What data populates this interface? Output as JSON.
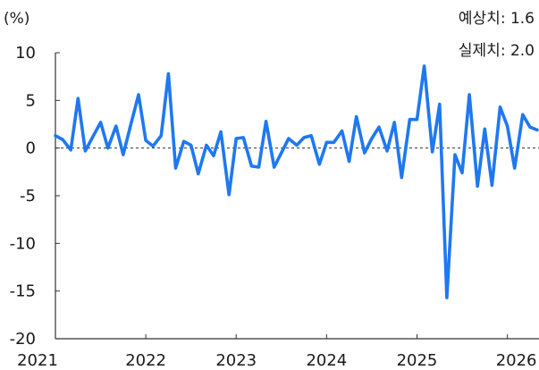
{
  "chart_data": {
    "type": "line",
    "unit_label": "(%)",
    "title": "",
    "xlabel": "",
    "ylabel": "",
    "ylim": [
      -20,
      10
    ],
    "yticks": [
      "10",
      "5",
      "0",
      "-5",
      "-10",
      "-15",
      "-20"
    ],
    "yticks_values": [
      10,
      5,
      0,
      -5,
      -10,
      -15,
      -20
    ],
    "xticks": [
      "2021",
      "2022",
      "2023",
      "2024",
      "2025",
      "2026"
    ],
    "xticks_values": [
      2021,
      2022,
      2023,
      2024,
      2025,
      2026
    ],
    "xlim": [
      2021.0,
      2026.35
    ],
    "grid": false,
    "annotations": [
      "예상치: 1.6",
      "실제치: 2.0"
    ],
    "series_color": "#1f78f0",
    "series": [
      {
        "x": [
          2021.0,
          2021.08,
          2021.17,
          2021.25,
          2021.33,
          2021.42,
          2021.5,
          2021.58,
          2021.67,
          2021.75,
          2021.83,
          2021.92,
          2022.0,
          2022.08,
          2022.17,
          2022.25,
          2022.33,
          2022.42,
          2022.5,
          2022.58,
          2022.67,
          2022.75,
          2022.83,
          2022.92,
          2023.0,
          2023.08,
          2023.17,
          2023.25,
          2023.33,
          2023.42,
          2023.5,
          2023.58,
          2023.67,
          2023.75,
          2023.83,
          2023.92,
          2024.0,
          2024.08,
          2024.17,
          2024.25,
          2024.33,
          2024.42,
          2024.5,
          2024.58,
          2024.67,
          2024.75,
          2024.83,
          2024.92,
          2025.0,
          2025.08,
          2025.17,
          2025.25,
          2025.33,
          2025.42,
          2025.5,
          2025.58,
          2025.67,
          2025.75,
          2025.83,
          2025.92,
          2026.0,
          2026.08,
          2026.17,
          2026.25,
          2026.33
        ],
        "values": [
          1.3,
          0.9,
          -0.2,
          5.2,
          -0.3,
          1.3,
          2.7,
          0.0,
          2.3,
          -0.7,
          2.3,
          5.6,
          0.8,
          0.2,
          1.3,
          7.8,
          -2.1,
          0.7,
          0.3,
          -2.7,
          0.3,
          -0.8,
          1.7,
          -4.9,
          1.0,
          1.1,
          -1.9,
          -2.0,
          2.8,
          -2.0,
          -0.5,
          1.0,
          0.3,
          1.1,
          1.3,
          -1.7,
          0.6,
          0.6,
          1.8,
          -1.4,
          3.3,
          -0.5,
          1.0,
          2.2,
          -0.3,
          2.7,
          -3.1,
          3.0,
          3.0,
          8.6,
          -0.4,
          4.6,
          -15.7,
          -0.7,
          -2.6,
          5.6,
          -4.0,
          2.0,
          -3.9,
          4.3,
          2.3,
          -2.1,
          3.5,
          2.2,
          1.9
        ]
      }
    ]
  }
}
